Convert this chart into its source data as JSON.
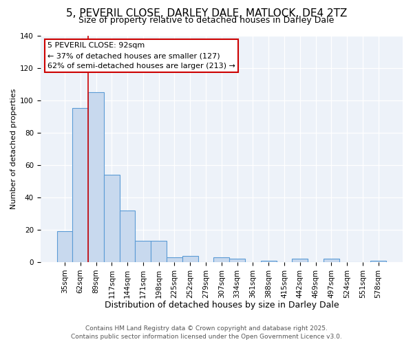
{
  "title": "5, PEVERIL CLOSE, DARLEY DALE, MATLOCK, DE4 2TZ",
  "subtitle": "Size of property relative to detached houses in Darley Dale",
  "xlabel": "Distribution of detached houses by size in Darley Dale",
  "ylabel": "Number of detached properties",
  "bar_labels": [
    "35sqm",
    "62sqm",
    "89sqm",
    "117sqm",
    "144sqm",
    "171sqm",
    "198sqm",
    "225sqm",
    "252sqm",
    "279sqm",
    "307sqm",
    "334sqm",
    "361sqm",
    "388sqm",
    "415sqm",
    "442sqm",
    "469sqm",
    "497sqm",
    "524sqm",
    "551sqm",
    "578sqm"
  ],
  "bar_values": [
    19,
    95,
    105,
    54,
    32,
    13,
    13,
    3,
    4,
    0,
    3,
    2,
    0,
    1,
    0,
    2,
    0,
    2,
    0,
    0,
    1
  ],
  "bar_color": "#c8d9ee",
  "bar_edge_color": "#5b9bd5",
  "bar_width": 1.0,
  "redline_index": 2,
  "redline_color": "#cc0000",
  "ylim": [
    0,
    140
  ],
  "yticks": [
    0,
    20,
    40,
    60,
    80,
    100,
    120,
    140
  ],
  "annotation_line1": "5 PEVERIL CLOSE: 92sqm",
  "annotation_line2": "← 37% of detached houses are smaller (127)",
  "annotation_line3": "62% of semi-detached houses are larger (213) →",
  "footer_line1": "Contains HM Land Registry data © Crown copyright and database right 2025.",
  "footer_line2": "Contains public sector information licensed under the Open Government Licence v3.0.",
  "bg_color": "#edf2f9",
  "grid_color": "#ffffff",
  "title_fontsize": 11,
  "subtitle_fontsize": 9,
  "xlabel_fontsize": 9,
  "ylabel_fontsize": 8,
  "tick_fontsize": 7.5,
  "annot_fontsize": 8,
  "footer_fontsize": 6.5
}
